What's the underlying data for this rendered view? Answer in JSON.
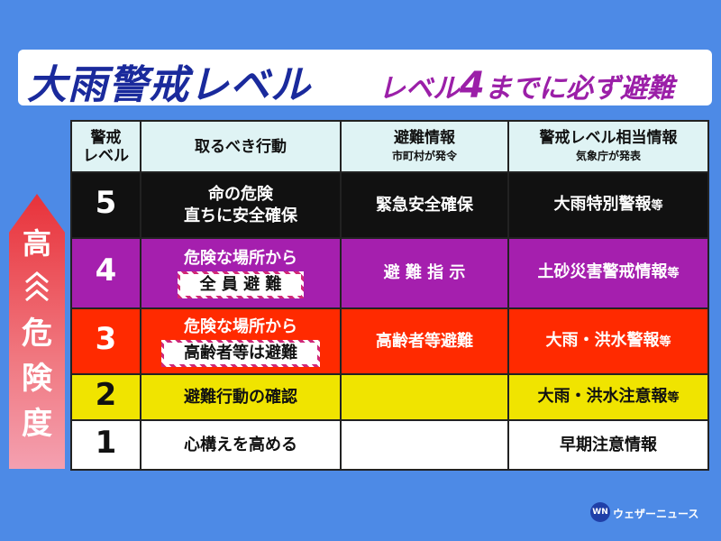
{
  "header": {
    "title": "大雨警戒レベル",
    "subtitle": [
      "レベル",
      "4",
      "までに必ず避難"
    ]
  },
  "side": {
    "top": "高",
    "label": [
      "危",
      "険",
      "度"
    ]
  },
  "table": {
    "columns": [
      {
        "title": [
          "警戒",
          "レベル"
        ]
      },
      {
        "title": [
          "取るべき行動"
        ]
      },
      {
        "title": [
          "避難情報"
        ],
        "note": "市町村が発令"
      },
      {
        "title": [
          "警戒レベル相当情報"
        ],
        "note": "気象庁が発表"
      }
    ],
    "rows": [
      {
        "level": "5",
        "action": [
          "命の危険",
          "直ちに安全確保"
        ],
        "evacuation": "緊急安全確保",
        "weather": "大雨特別警報",
        "weather_suffix": "等"
      },
      {
        "level": "4",
        "action": [
          "危険な場所から"
        ],
        "action_box": "全 員 避 難",
        "evacuation": "避 難 指 示",
        "weather": "土砂災害警戒情報",
        "weather_suffix": "等"
      },
      {
        "level": "3",
        "action": [
          "危険な場所から"
        ],
        "action_box": "高齢者等は避難",
        "evacuation": "高齢者等避難",
        "weather": "大雨・洪水警報",
        "weather_suffix": "等"
      },
      {
        "level": "2",
        "action": [
          "避難行動の確認"
        ],
        "weather": "大雨・洪水注意報",
        "weather_suffix": "等"
      },
      {
        "level": "1",
        "action": [
          "心構えを高める"
        ],
        "weather": "早期注意情報"
      }
    ]
  },
  "footer": {
    "logo": "WN",
    "brand": "ウェザーニュース"
  }
}
